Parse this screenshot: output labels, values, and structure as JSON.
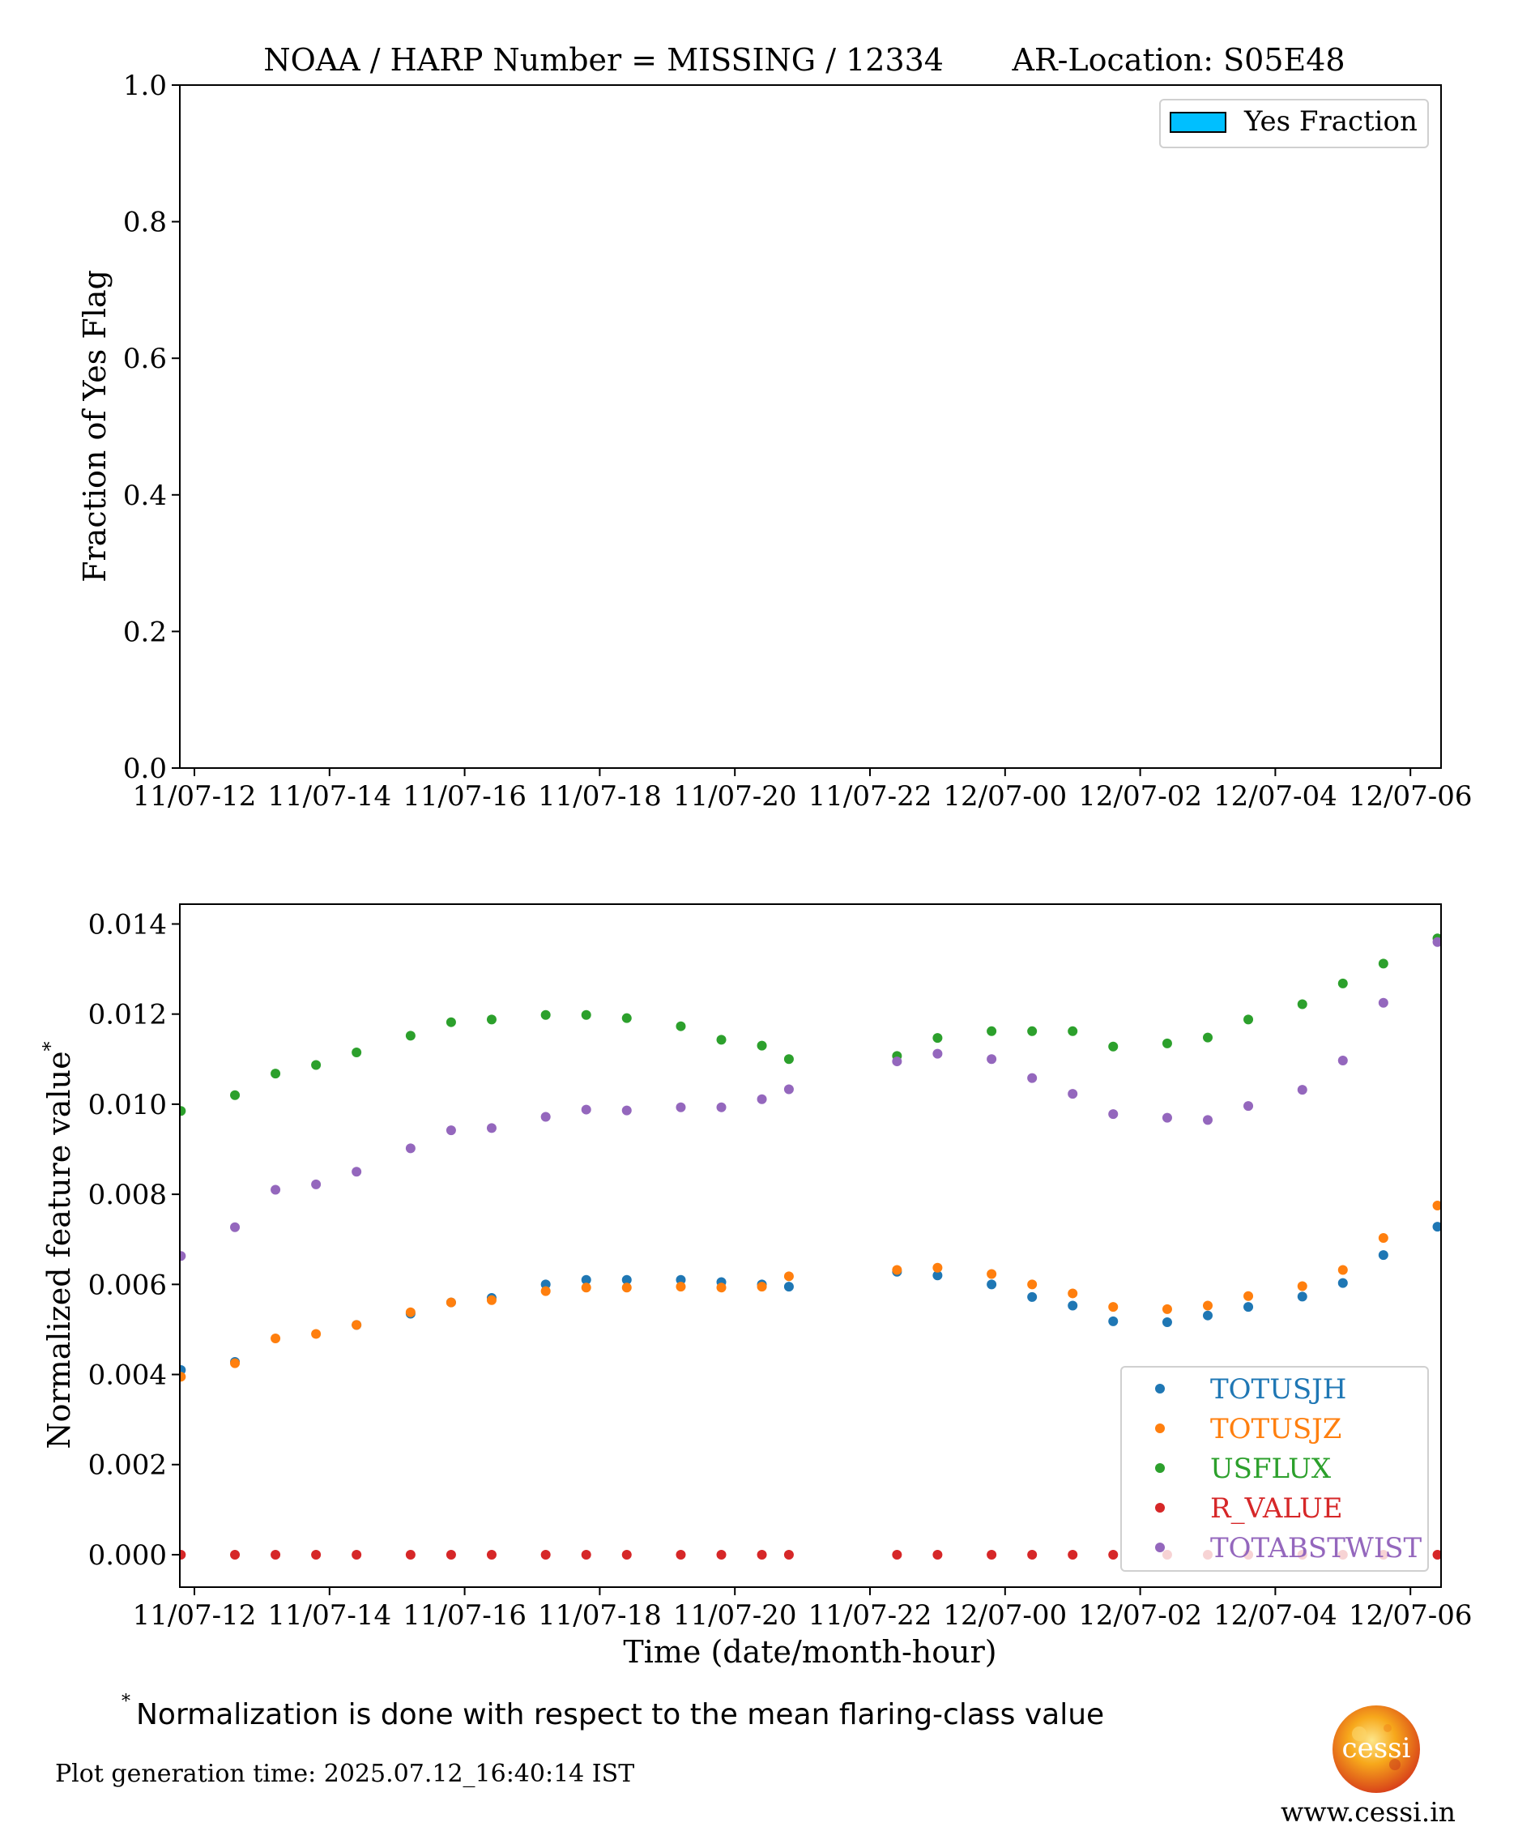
{
  "chart_data": [
    {
      "type": "bar",
      "title": "NOAA / HARP Number = MISSING / 12334       AR-Location: S05E48",
      "xlabel": "",
      "ylabel": "Fraction of Yes Flag",
      "ylim": [
        0.0,
        1.0
      ],
      "yticks": [
        "0.0",
        "0.2",
        "0.4",
        "0.6",
        "0.8",
        "1.0"
      ],
      "xticks": [
        "11/07-12",
        "11/07-14",
        "11/07-16",
        "11/07-18",
        "11/07-20",
        "11/07-22",
        "12/07-00",
        "12/07-02",
        "12/07-04",
        "12/07-06"
      ],
      "legend": {
        "placement": "top-right",
        "entries": [
          {
            "label": "Yes Fraction",
            "color": "#00bfff"
          }
        ]
      },
      "series": [
        {
          "name": "Yes Fraction",
          "values": []
        }
      ],
      "grid": false
    },
    {
      "type": "scatter",
      "title": "",
      "xlabel": "Time (date/month-hour)",
      "ylabel": "Normalized feature value",
      "ylabel_sup": "*",
      "ylim": [
        -0.00072,
        0.01444
      ],
      "yticks": [
        "0.000",
        "0.002",
        "0.004",
        "0.006",
        "0.008",
        "0.010",
        "0.012",
        "0.014"
      ],
      "xticks": [
        "11/07-12",
        "11/07-14",
        "11/07-16",
        "11/07-18",
        "11/07-20",
        "11/07-22",
        "12/07-00",
        "12/07-02",
        "12/07-04",
        "12/07-06"
      ],
      "grid": false,
      "legend": {
        "placement": "lower-right"
      },
      "x": [
        "11/07-11:48",
        "11/07-12:36",
        "11/07-13:12",
        "11/07-13:48",
        "11/07-14:24",
        "11/07-15:12",
        "11/07-15:48",
        "11/07-16:24",
        "11/07-17:12",
        "11/07-17:48",
        "11/07-18:24",
        "11/07-19:12",
        "11/07-19:48",
        "11/07-20:24",
        "11/07-20:48",
        "11/07-22:24",
        "11/07-23:00",
        "11/07-23:48",
        "12/07-00:24",
        "12/07-01:00",
        "12/07-01:36",
        "12/07-02:24",
        "12/07-03:00",
        "12/07-03:36",
        "12/07-04:24",
        "12/07-05:00",
        "12/07-05:36",
        "12/07-06:24"
      ],
      "series": [
        {
          "name": "TOTUSJH",
          "color": "#1f77b4",
          "values": [
            0.0041,
            0.00428,
            null,
            null,
            0.0051,
            0.00535,
            0.0056,
            0.0057,
            0.006,
            0.0061,
            0.0061,
            0.0061,
            0.00605,
            0.006,
            0.00595,
            0.00628,
            0.0062,
            0.006,
            0.00572,
            0.00553,
            0.00518,
            0.00516,
            0.00531,
            0.0055,
            0.00573,
            0.00603,
            0.00665,
            0.00728
          ]
        },
        {
          "name": "TOTUSJZ",
          "color": "#ff7f0e",
          "values": [
            0.00395,
            0.00425,
            0.0048,
            0.0049,
            0.0051,
            0.00538,
            0.0056,
            0.00565,
            0.00585,
            0.00593,
            0.00593,
            0.00595,
            0.00593,
            0.00595,
            0.00618,
            0.00632,
            0.00637,
            0.00623,
            0.006,
            0.0058,
            0.0055,
            0.00545,
            0.00553,
            0.00574,
            0.00596,
            0.00632,
            0.00703,
            0.00775
          ]
        },
        {
          "name": "USFLUX",
          "color": "#2ca02c",
          "values": [
            0.00985,
            0.0102,
            0.01068,
            0.01087,
            0.01115,
            0.01152,
            0.01182,
            0.01188,
            0.01198,
            0.01198,
            0.01191,
            0.01173,
            0.01143,
            0.0113,
            0.011,
            0.01107,
            0.01147,
            0.01162,
            0.01162,
            0.01162,
            0.01128,
            0.01135,
            0.01148,
            0.01188,
            0.01222,
            0.01268,
            0.01312,
            0.01368
          ]
        },
        {
          "name": "R_VALUE",
          "color": "#d62728",
          "values": [
            0,
            0,
            0,
            0,
            0,
            0,
            0,
            0,
            0,
            0,
            0,
            0,
            0,
            0,
            0,
            0,
            0,
            0,
            0,
            0,
            0,
            0,
            0,
            0,
            0,
            0,
            0,
            0
          ]
        },
        {
          "name": "TOTABSTWIST",
          "color": "#9467bd",
          "values": [
            0.00663,
            0.00727,
            0.0081,
            0.00822,
            0.0085,
            0.00902,
            0.00942,
            0.00947,
            0.00972,
            0.00988,
            0.00986,
            0.00993,
            0.00993,
            0.01011,
            0.01033,
            0.01095,
            0.01112,
            0.011,
            0.01058,
            0.01023,
            0.00978,
            0.0097,
            0.00965,
            0.00996,
            0.01032,
            0.01097,
            0.01225,
            0.0136
          ]
        }
      ]
    }
  ],
  "footnote": {
    "marker": "*",
    "text": "Normalization is done with respect to the mean flaring-class value"
  },
  "generation_time": "Plot generation time: 2025.07.12_16:40:14 IST",
  "logo": {
    "text": "cessi",
    "url_text": "www.cessi.in"
  },
  "colors": {
    "bar_fill": "#00bfff",
    "sun_core": "#f7b51f",
    "sun_edge": "#e0531b"
  }
}
